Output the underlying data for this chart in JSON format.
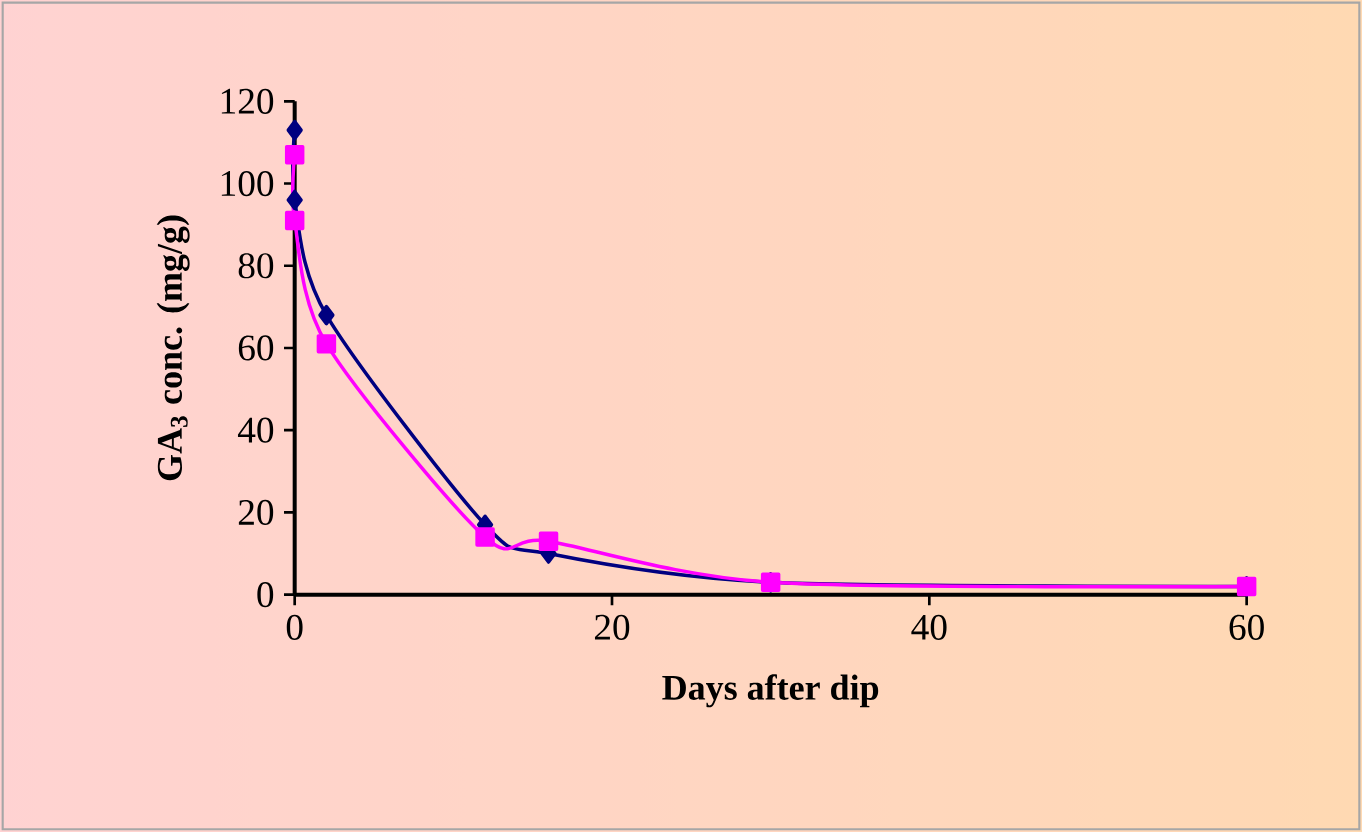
{
  "chart_data": {
    "type": "line",
    "xlabel": "Days after dip",
    "ylabel": "GA$_{3}$ conc. (mg/g)",
    "xlim": [
      0,
      60
    ],
    "xticks": [
      0,
      20,
      40,
      60
    ],
    "ylim": [
      0,
      120
    ],
    "yticks": [
      0,
      20,
      40,
      60,
      80,
      100,
      120
    ],
    "series": [
      {
        "color": "#000080",
        "marker": "diamond",
        "x": [
          0,
          0,
          2,
          12,
          16,
          30,
          60
        ],
        "values": [
          113,
          96,
          68,
          17,
          10,
          3,
          2
        ]
      },
      {
        "color": "#ff00ff",
        "marker": "square",
        "x": [
          0,
          0,
          2,
          12,
          16,
          30,
          60
        ],
        "values": [
          107,
          91,
          61,
          14,
          13,
          3,
          2
        ]
      }
    ]
  }
}
